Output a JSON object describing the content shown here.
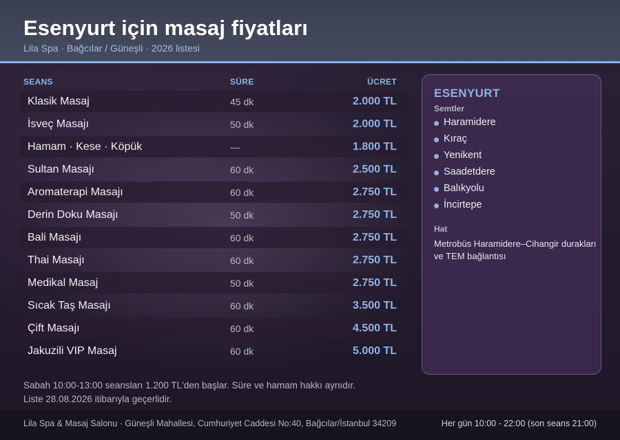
{
  "header": {
    "title": "Esenyurt için masaj fiyatları",
    "subtitle": "Lila Spa · Bağcılar / Güneşli · 2026 listesi"
  },
  "table": {
    "columns": {
      "seans": "SEANS",
      "sure": "SÜRE",
      "ucret": "ÜCRET"
    },
    "rows": [
      {
        "name": "Klasik Masaj",
        "duration": "45 dk",
        "price": "2.000 TL"
      },
      {
        "name": "İsveç Masajı",
        "duration": "50 dk",
        "price": "2.000 TL"
      },
      {
        "name": "Hamam · Kese · Köpük",
        "duration": "—",
        "price": "1.800 TL"
      },
      {
        "name": "Sultan Masajı",
        "duration": "60 dk",
        "price": "2.500 TL"
      },
      {
        "name": "Aromaterapi Masajı",
        "duration": "60 dk",
        "price": "2.750 TL"
      },
      {
        "name": "Derin Doku Masajı",
        "duration": "50 dk",
        "price": "2.750 TL"
      },
      {
        "name": "Bali Masajı",
        "duration": "60 dk",
        "price": "2.750 TL"
      },
      {
        "name": "Thai Masajı",
        "duration": "60 dk",
        "price": "2.750 TL"
      },
      {
        "name": "Medikal Masaj",
        "duration": "50 dk",
        "price": "2.750 TL"
      },
      {
        "name": "Sıcak Taş Masajı",
        "duration": "60 dk",
        "price": "3.500 TL"
      },
      {
        "name": "Çift Masajı",
        "duration": "60 dk",
        "price": "4.500 TL"
      },
      {
        "name": "Jakuzili VIP Masaj",
        "duration": "60 dk",
        "price": "5.000 TL"
      }
    ]
  },
  "notes": {
    "line1": "Sabah 10:00-13:00 seansları 1.200 TL'den başlar. Süre ve hamam hakkı aynıdır.",
    "line2": "Liste 28.08.2026 itibarıyla geçerlidir."
  },
  "sidebar": {
    "title": "ESENYURT",
    "semtler_label": "Semtler",
    "semtler": [
      "Haramidere",
      "Kıraç",
      "Yenikent",
      "Saadetdere",
      "Balıkyolu",
      "İncirtepe"
    ],
    "hat_label": "Hat",
    "hat_text": "Metrobüs Haramidere–Cihangir durakları ve TEM bağlantısı"
  },
  "footer": {
    "address": "Lila Spa & Masaj Salonu · Güneşli Mahallesi, Cumhuriyet Caddesi No:40, Bağcılar/İstanbul 34209",
    "hours": "Her gün 10:00 - 22:00 (son seans 21:00)"
  },
  "colors": {
    "accent": "#8fb3e6",
    "header_bg": "#41475a",
    "card_bg": "#3e2c52",
    "footer_bg": "#18141f"
  }
}
